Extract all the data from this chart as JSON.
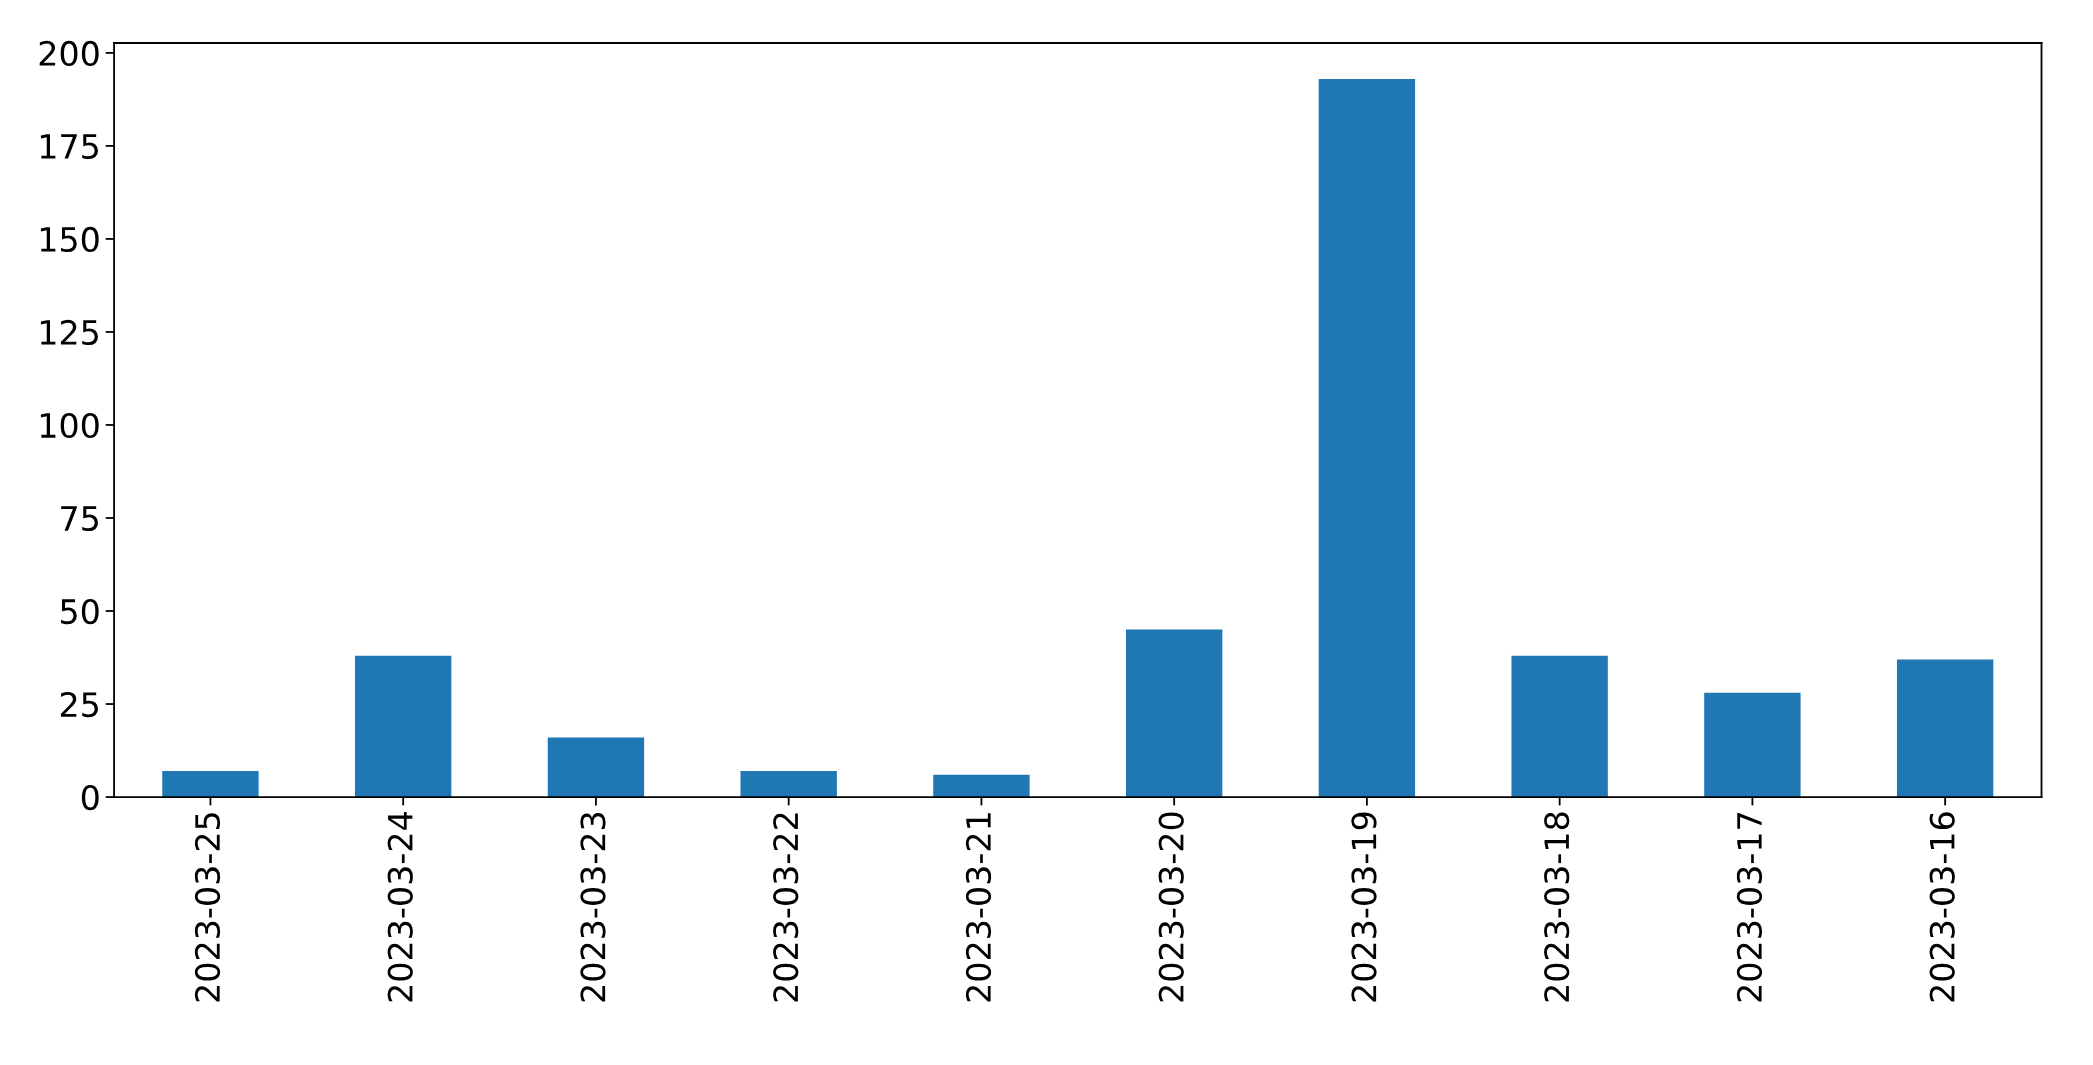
{
  "chart_data": {
    "type": "bar",
    "categories": [
      "2023-03-25",
      "2023-03-24",
      "2023-03-23",
      "2023-03-22",
      "2023-03-21",
      "2023-03-20",
      "2023-03-19",
      "2023-03-18",
      "2023-03-17",
      "2023-03-16"
    ],
    "values": [
      7,
      38,
      16,
      7,
      6,
      45,
      193,
      38,
      28,
      37
    ],
    "color": "#1f77b4",
    "ylim": [
      0,
      202.65
    ],
    "yticks": [
      0,
      25,
      50,
      75,
      100,
      125,
      150,
      175,
      200
    ],
    "grid": false
  }
}
